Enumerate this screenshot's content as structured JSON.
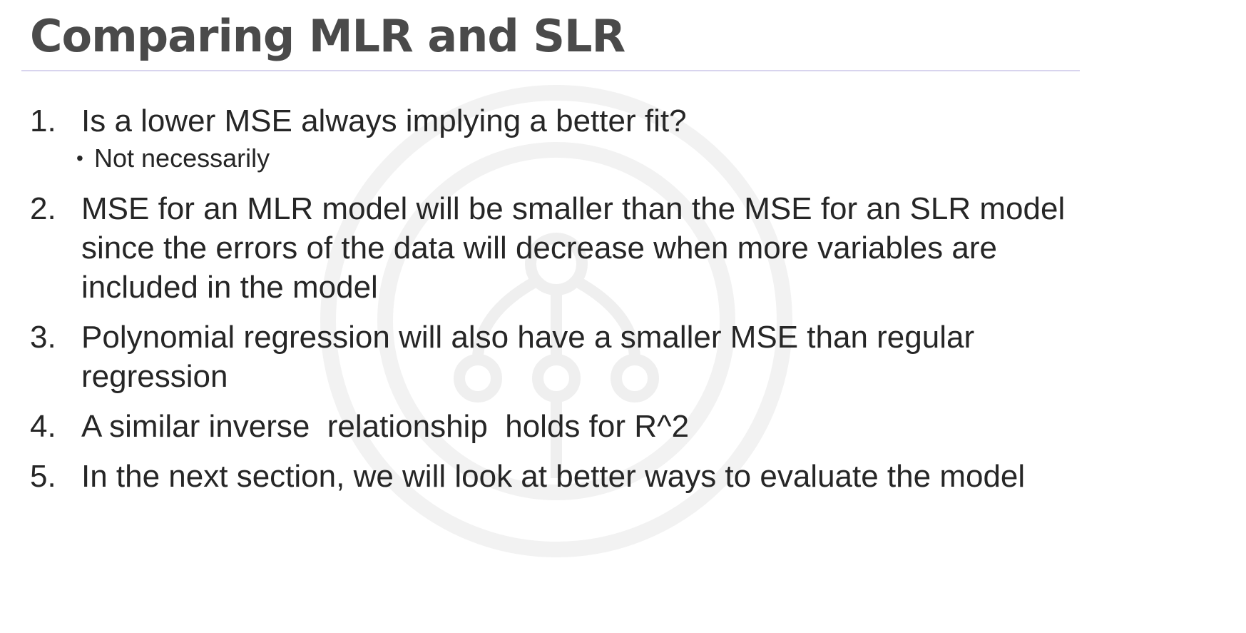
{
  "slide": {
    "title": "Comparing MLR and SLR"
  },
  "items": [
    {
      "number": "1.",
      "text": "Is a lower MSE always implying a better fit?",
      "sub_bullets": [
        "Not necessarily"
      ]
    },
    {
      "number": "2.",
      "text": "MSE for an MLR model will be smaller than the MSE for an SLR model since the errors of the data will decrease when more variables are included in the model"
    },
    {
      "number": "3.",
      "text": "Polynomial regression will also have a smaller MSE than regular regression"
    },
    {
      "number": "4.",
      "text": "A similar inverse  relationship  holds for R^2"
    },
    {
      "number": "5.",
      "text": "In the next section, we will look at better ways to evaluate the model"
    }
  ],
  "decoration": {
    "watermark_icon": "network-circle-icon",
    "rule_color": "#d8d4ee",
    "title_color": "#4a4a4a",
    "text_color": "#262626"
  }
}
